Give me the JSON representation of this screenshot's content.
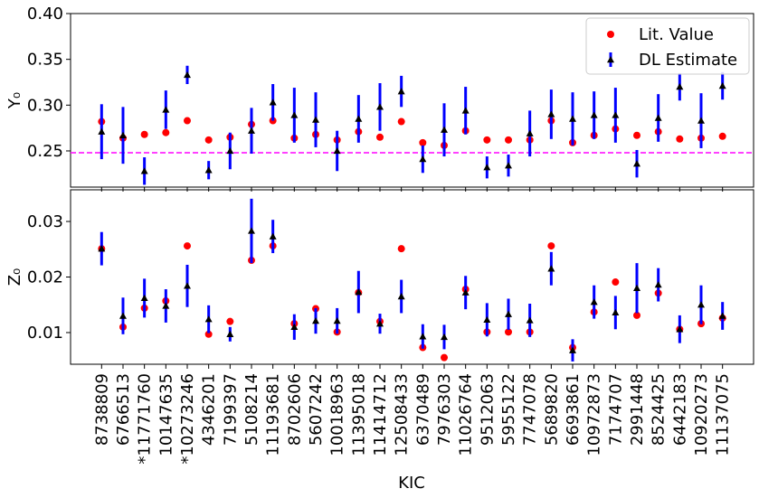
{
  "chart_data": [
    {
      "type": "errorbar",
      "ylabel": "Y₀",
      "ylim": [
        0.2105,
        0.4
      ],
      "yticks": [
        0.25,
        {
          "value": 0.3,
          "label": "0.30"
        },
        0.35,
        {
          "value": 0.4,
          "label": "0.40"
        }
      ],
      "hline": {
        "value": 0.248,
        "color": "#ff00ff",
        "style": "dashed"
      },
      "legend": "upper right",
      "series": [
        {
          "name": "Lit. Value",
          "color": "#ff0000",
          "marker": "circle",
          "values": [
            0.282,
            0.264,
            0.268,
            0.27,
            0.283,
            0.262,
            0.265,
            0.279,
            0.283,
            0.264,
            0.268,
            0.262,
            0.271,
            0.265,
            0.282,
            0.259,
            0.256,
            0.272,
            0.262,
            0.262,
            0.262,
            0.283,
            0.259,
            0.267,
            0.274,
            0.267,
            0.271,
            0.263,
            0.264,
            0.266
          ]
        },
        {
          "name": "DL Estimate",
          "color": "#0000ff",
          "marker_color": "#000000",
          "marker": "triangle",
          "values": [
            0.271,
            0.267,
            0.228,
            0.295,
            0.333,
            0.229,
            0.25,
            0.272,
            0.303,
            0.289,
            0.284,
            0.25,
            0.285,
            0.298,
            0.315,
            0.241,
            0.273,
            0.294,
            0.232,
            0.234,
            0.269,
            0.29,
            0.285,
            0.289,
            0.289,
            0.236,
            0.286,
            0.32,
            0.283,
            0.321
          ],
          "errors": [
            0.03,
            0.031,
            0.015,
            0.021,
            0.01,
            0.01,
            0.02,
            0.025,
            0.02,
            0.03,
            0.03,
            0.022,
            0.026,
            0.026,
            0.017,
            0.015,
            0.029,
            0.026,
            0.012,
            0.012,
            0.025,
            0.027,
            0.029,
            0.026,
            0.03,
            0.015,
            0.026,
            0.015,
            0.03,
            0.015
          ]
        }
      ]
    },
    {
      "type": "errorbar",
      "ylabel": "Z₀",
      "xlabel": "KIC",
      "categories": [
        "8738809",
        "6766513",
        "*11771760",
        "10147635",
        "*10273246",
        "4346201",
        "7199397",
        "5108214",
        "11193681",
        "8702606",
        "5607242",
        "10018963",
        "11395018",
        "11414712",
        "12508433",
        "6370489",
        "7976303",
        "11026764",
        "9512063",
        "5955122",
        "7747078",
        "5689820",
        "6693861",
        "10972873",
        "7174707",
        "2991448",
        "8524425",
        "6442183",
        "10920273",
        "11137075"
      ],
      "ylim": [
        0.0043,
        0.0357
      ],
      "yticks": [
        0.01,
        0.02,
        0.03
      ],
      "series": [
        {
          "color": "#ff0000",
          "marker": "circle",
          "values": [
            0.0251,
            0.011,
            0.0144,
            0.0157,
            0.0256,
            0.0097,
            0.012,
            0.023,
            0.0256,
            0.0116,
            0.0143,
            0.0101,
            0.0172,
            0.012,
            0.0251,
            0.0073,
            0.0055,
            0.0178,
            0.0101,
            0.0101,
            0.0101,
            0.0256,
            0.0073,
            0.0137,
            0.0191,
            0.0131,
            0.0171,
            0.0106,
            0.0116,
            0.0126
          ]
        },
        {
          "color": "#0000ff",
          "marker_color": "#000000",
          "marker": "triangle",
          "values": [
            0.0251,
            0.013,
            0.0162,
            0.0148,
            0.0184,
            0.0124,
            0.0097,
            0.0283,
            0.0273,
            0.011,
            0.0121,
            0.0121,
            0.0173,
            0.0116,
            0.0165,
            0.0093,
            0.0092,
            0.0172,
            0.0123,
            0.0133,
            0.0122,
            0.0215,
            0.0068,
            0.0155,
            0.0136,
            0.018,
            0.0186,
            0.0106,
            0.015,
            0.013
          ],
          "errors": [
            0.003,
            0.0033,
            0.0035,
            0.003,
            0.0038,
            0.0025,
            0.0013,
            0.0058,
            0.003,
            0.0023,
            0.0023,
            0.0023,
            0.0038,
            0.0018,
            0.003,
            0.0022,
            0.0022,
            0.003,
            0.003,
            0.0028,
            0.003,
            0.003,
            0.002,
            0.003,
            0.003,
            0.0045,
            0.003,
            0.0025,
            0.0035,
            0.0025
          ]
        }
      ]
    }
  ]
}
